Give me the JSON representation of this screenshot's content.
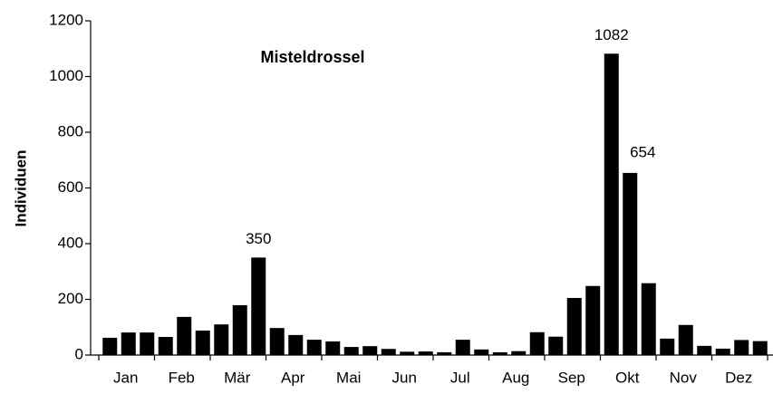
{
  "chart_data": {
    "type": "bar",
    "title": "Misteldrossel",
    "y_label": "Individuen",
    "categories": [
      null,
      "Jan",
      null,
      null,
      "Feb",
      null,
      null,
      "Mär",
      null,
      null,
      "Apr",
      null,
      null,
      "Mai",
      null,
      null,
      "Jun",
      null,
      null,
      "Jul",
      null,
      null,
      "Aug",
      null,
      null,
      "Sep",
      null,
      null,
      "Okt",
      null,
      null,
      "Nov",
      null,
      null,
      "Dez",
      null
    ],
    "values": [
      62,
      81,
      81,
      65,
      137,
      88,
      110,
      179,
      350,
      97,
      72,
      55,
      49,
      29,
      32,
      22,
      12,
      13,
      10,
      55,
      20,
      10,
      14,
      82,
      66,
      205,
      248,
      1082,
      654,
      258,
      59,
      108,
      33,
      23,
      54,
      50
    ],
    "value_labels": [
      null,
      null,
      null,
      null,
      null,
      null,
      null,
      null,
      "350",
      null,
      null,
      null,
      null,
      null,
      null,
      null,
      null,
      null,
      null,
      null,
      null,
      null,
      null,
      null,
      null,
      null,
      null,
      "1082",
      "654",
      null,
      null,
      null,
      null,
      null,
      null,
      null
    ],
    "color": "#000000",
    "ylim": [
      0,
      1200
    ],
    "yticks": [
      0,
      200,
      400,
      600,
      800,
      1000,
      1200
    ],
    "grid": false
  }
}
